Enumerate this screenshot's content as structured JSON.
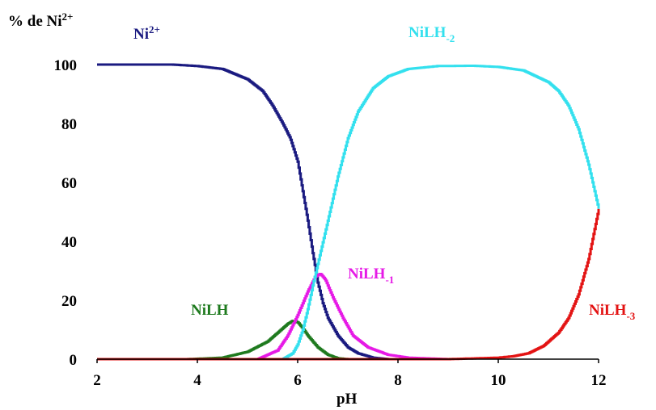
{
  "chart_data": {
    "type": "line",
    "ylabel": {
      "main": "% de Ni",
      "sup": "2+"
    },
    "xlabel": "pH",
    "xlim": [
      2,
      12
    ],
    "ylim": [
      0,
      100
    ],
    "xticks": [
      "2",
      "4",
      "6",
      "8",
      "10",
      "12"
    ],
    "yticks": [
      "0",
      "20",
      "40",
      "60",
      "80",
      "100"
    ],
    "grid": false,
    "series": [
      {
        "key": "ni",
        "label": {
          "main": "Ni",
          "sup": "2+",
          "sub": ""
        },
        "color": "#1a1a80",
        "x": [
          2,
          3,
          3.5,
          4,
          4.5,
          5,
          5.3,
          5.5,
          5.7,
          5.85,
          6,
          6.1,
          6.2,
          6.3,
          6.4,
          6.5,
          6.6,
          6.8,
          7,
          7.2,
          7.5,
          7.8
        ],
        "y": [
          100,
          100,
          100,
          99.5,
          98.5,
          95,
          91,
          86,
          80,
          75,
          67,
          57,
          47,
          36,
          26,
          19,
          14,
          8,
          4,
          2,
          0.5,
          0
        ]
      },
      {
        "key": "nilh",
        "label": {
          "main": "NiLH",
          "sup": "",
          "sub": ""
        },
        "color": "#1e7a1e",
        "x": [
          2,
          3.8,
          4.5,
          5,
          5.4,
          5.6,
          5.8,
          5.9,
          6,
          6.1,
          6.2,
          6.4,
          6.6,
          6.8,
          7
        ],
        "y": [
          0,
          0,
          0.5,
          2.5,
          6,
          9,
          12,
          13,
          12.5,
          10.5,
          8,
          4,
          1.5,
          0.3,
          0
        ]
      },
      {
        "key": "nilh_m1",
        "label": {
          "main": "NiLH",
          "sup": "",
          "sub": "-1"
        },
        "color": "#e619e6",
        "x": [
          2,
          5.2,
          5.6,
          5.8,
          6,
          6.2,
          6.35,
          6.45,
          6.55,
          6.7,
          6.9,
          7.1,
          7.4,
          7.8,
          8.2,
          9
        ],
        "y": [
          0,
          0,
          3,
          8,
          15,
          23,
          28,
          29,
          27,
          21,
          14,
          8,
          4,
          1.5,
          0.5,
          0
        ]
      },
      {
        "key": "nilh_m2",
        "label": {
          "main": "NiLH",
          "sup": "",
          "sub": "-2"
        },
        "color": "#33e0ee",
        "x": [
          2,
          5.7,
          5.9,
          6,
          6.1,
          6.2,
          6.3,
          6.45,
          6.6,
          6.8,
          7,
          7.2,
          7.5,
          7.8,
          8.2,
          8.8,
          9.5,
          10,
          10.5,
          11,
          11.2,
          11.4,
          11.6,
          11.8,
          12
        ],
        "y": [
          0,
          0,
          2,
          5,
          10,
          17,
          25,
          36,
          47,
          62,
          75,
          84,
          92,
          96,
          98.5,
          99.5,
          99.6,
          99.2,
          98,
          94,
          91,
          86,
          78,
          66,
          51
        ]
      },
      {
        "key": "nilh_m3",
        "label": {
          "main": "NiLH",
          "sup": "",
          "sub": "-3"
        },
        "color": "#e31313",
        "x": [
          2,
          9,
          10,
          10.3,
          10.6,
          10.9,
          11.2,
          11.4,
          11.6,
          11.8,
          12
        ],
        "y": [
          0,
          0,
          0.5,
          1,
          2,
          4.5,
          9,
          14,
          22,
          34,
          51
        ]
      }
    ]
  }
}
